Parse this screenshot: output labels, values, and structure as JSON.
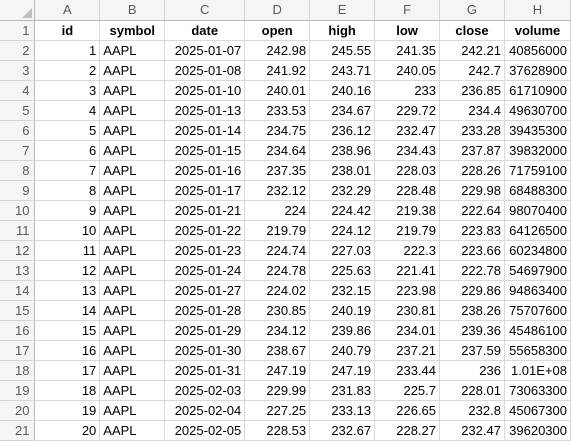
{
  "columns": [
    "A",
    "B",
    "C",
    "D",
    "E",
    "F",
    "G",
    "H"
  ],
  "headers": [
    "id",
    "symbol",
    "date",
    "open",
    "high",
    "low",
    "close",
    "volume"
  ],
  "rows": [
    [
      "1",
      "AAPL",
      "2025-01-07",
      "242.98",
      "245.55",
      "241.35",
      "242.21",
      "40856000"
    ],
    [
      "2",
      "AAPL",
      "2025-01-08",
      "241.92",
      "243.71",
      "240.05",
      "242.7",
      "37628900"
    ],
    [
      "3",
      "AAPL",
      "2025-01-10",
      "240.01",
      "240.16",
      "233",
      "236.85",
      "61710900"
    ],
    [
      "4",
      "AAPL",
      "2025-01-13",
      "233.53",
      "234.67",
      "229.72",
      "234.4",
      "49630700"
    ],
    [
      "5",
      "AAPL",
      "2025-01-14",
      "234.75",
      "236.12",
      "232.47",
      "233.28",
      "39435300"
    ],
    [
      "6",
      "AAPL",
      "2025-01-15",
      "234.64",
      "238.96",
      "234.43",
      "237.87",
      "39832000"
    ],
    [
      "7",
      "AAPL",
      "2025-01-16",
      "237.35",
      "238.01",
      "228.03",
      "228.26",
      "71759100"
    ],
    [
      "8",
      "AAPL",
      "2025-01-17",
      "232.12",
      "232.29",
      "228.48",
      "229.98",
      "68488300"
    ],
    [
      "9",
      "AAPL",
      "2025-01-21",
      "224",
      "224.42",
      "219.38",
      "222.64",
      "98070400"
    ],
    [
      "10",
      "AAPL",
      "2025-01-22",
      "219.79",
      "224.12",
      "219.79",
      "223.83",
      "64126500"
    ],
    [
      "11",
      "AAPL",
      "2025-01-23",
      "224.74",
      "227.03",
      "222.3",
      "223.66",
      "60234800"
    ],
    [
      "12",
      "AAPL",
      "2025-01-24",
      "224.78",
      "225.63",
      "221.41",
      "222.78",
      "54697900"
    ],
    [
      "13",
      "AAPL",
      "2025-01-27",
      "224.02",
      "232.15",
      "223.98",
      "229.86",
      "94863400"
    ],
    [
      "14",
      "AAPL",
      "2025-01-28",
      "230.85",
      "240.19",
      "230.81",
      "238.26",
      "75707600"
    ],
    [
      "15",
      "AAPL",
      "2025-01-29",
      "234.12",
      "239.86",
      "234.01",
      "239.36",
      "45486100"
    ],
    [
      "16",
      "AAPL",
      "2025-01-30",
      "238.67",
      "240.79",
      "237.21",
      "237.59",
      "55658300"
    ],
    [
      "17",
      "AAPL",
      "2025-01-31",
      "247.19",
      "247.19",
      "233.44",
      "236",
      "1.01E+08"
    ],
    [
      "18",
      "AAPL",
      "2025-02-03",
      "229.99",
      "231.83",
      "225.7",
      "228.01",
      "73063300"
    ],
    [
      "19",
      "AAPL",
      "2025-02-04",
      "227.25",
      "233.13",
      "226.65",
      "232.8",
      "45067300"
    ],
    [
      "20",
      "AAPL",
      "2025-02-05",
      "228.53",
      "232.67",
      "228.27",
      "232.47",
      "39620300"
    ]
  ]
}
